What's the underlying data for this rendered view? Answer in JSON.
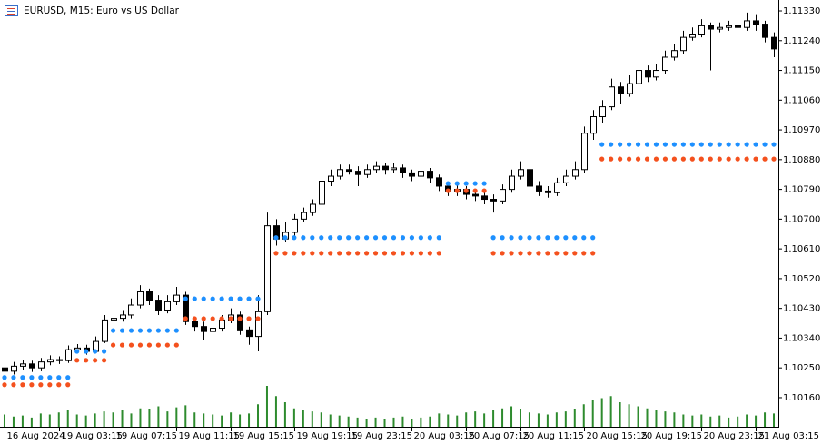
{
  "chart_data": {
    "type": "candlestick",
    "title": "EURUSD, M15:  Euro vs US Dollar",
    "categories": [
      "16 Aug 2024",
      null,
      null,
      null,
      null,
      null,
      "19 Aug 03:15",
      null,
      null,
      null,
      null,
      null,
      "19 Aug 07:15",
      null,
      null,
      null,
      null,
      null,
      null,
      "19 Aug 11:15",
      null,
      null,
      null,
      null,
      null,
      "19 Aug 15:15",
      null,
      null,
      null,
      null,
      null,
      null,
      "19 Aug 19:15",
      null,
      null,
      null,
      null,
      null,
      "19 Aug 23:15",
      null,
      null,
      null,
      null,
      null,
      null,
      "20 Aug 03:15",
      null,
      null,
      null,
      null,
      null,
      "20 Aug 07:15",
      null,
      null,
      null,
      null,
      null,
      "20 Aug 11:15",
      null,
      null,
      null,
      null,
      null,
      null,
      "20 Aug 15:15",
      null,
      null,
      null,
      null,
      null,
      "20 Aug 19:15",
      null,
      null,
      null,
      null,
      null,
      null,
      "20 Aug 23:15",
      null,
      null,
      null,
      null,
      null,
      "21 Aug 03:15",
      null,
      null
    ],
    "open": [
      1.1025,
      1.1024,
      1.10255,
      1.10262,
      1.1025,
      1.10268,
      1.10275,
      1.10272,
      1.10305,
      1.1031,
      1.103,
      1.1033,
      1.10395,
      1.104,
      1.1041,
      1.1044,
      1.1048,
      1.10455,
      1.10425,
      1.1045,
      1.1047,
      1.1039,
      1.10375,
      1.1036,
      1.1037,
      1.10395,
      1.1041,
      1.10365,
      1.10345,
      1.1042,
      1.1068,
      1.1064,
      1.1066,
      1.107,
      1.1072,
      1.10745,
      1.10815,
      1.1083,
      1.1085,
      1.10845,
      1.10835,
      1.1085,
      1.1086,
      1.1085,
      1.10855,
      1.1084,
      1.1083,
      1.10845,
      1.10825,
      1.108,
      1.10785,
      1.1079,
      1.10775,
      1.1077,
      1.1076,
      1.10755,
      1.1079,
      1.1083,
      1.1085,
      1.108,
      1.10785,
      1.1078,
      1.1081,
      1.1083,
      1.1085,
      1.1096,
      1.1101,
      1.1104,
      1.111,
      1.1108,
      1.1111,
      1.1115,
      1.1113,
      1.1115,
      1.1119,
      1.1121,
      1.1125,
      1.1126,
      1.11285,
      1.11275,
      1.1128,
      1.11285,
      1.1128,
      1.113,
      1.1129,
      1.1125
    ],
    "high": [
      1.10262,
      1.10268,
      1.10275,
      1.10272,
      1.1028,
      1.10288,
      1.10285,
      1.10318,
      1.10322,
      1.1032,
      1.10345,
      1.1041,
      1.10415,
      1.10425,
      1.1046,
      1.105,
      1.1049,
      1.1047,
      1.1047,
      1.10495,
      1.1048,
      1.104,
      1.1039,
      1.10385,
      1.1041,
      1.1043,
      1.1042,
      1.10375,
      1.1047,
      1.1072,
      1.107,
      1.1069,
      1.10715,
      1.10735,
      1.1076,
      1.10835,
      1.1085,
      1.10865,
      1.10865,
      1.1086,
      1.10865,
      1.10875,
      1.1087,
      1.1087,
      1.10865,
      1.1085,
      1.10865,
      1.10855,
      1.10835,
      1.1081,
      1.10805,
      1.108,
      1.1079,
      1.1078,
      1.10775,
      1.10805,
      1.1085,
      1.10875,
      1.1086,
      1.10815,
      1.108,
      1.10825,
      1.1085,
      1.10875,
      1.1098,
      1.1103,
      1.1106,
      1.11125,
      1.11115,
      1.11135,
      1.1117,
      1.11165,
      1.1117,
      1.1121,
      1.1123,
      1.1127,
      1.1128,
      1.11305,
      1.11295,
      1.11295,
      1.113,
      1.113,
      1.11325,
      1.1132,
      1.113,
      1.11265
    ],
    "low": [
      1.10228,
      1.1023,
      1.10245,
      1.10238,
      1.1024,
      1.10258,
      1.10262,
      1.10265,
      1.10295,
      1.1029,
      1.10295,
      1.10325,
      1.10385,
      1.1039,
      1.104,
      1.1043,
      1.1044,
      1.1041,
      1.10415,
      1.1044,
      1.1038,
      1.1036,
      1.10335,
      1.10345,
      1.1036,
      1.10385,
      1.1035,
      1.1032,
      1.103,
      1.1041,
      1.1062,
      1.1063,
      1.1065,
      1.1069,
      1.1071,
      1.10735,
      1.108,
      1.1082,
      1.10835,
      1.108,
      1.10825,
      1.1084,
      1.10835,
      1.1084,
      1.10825,
      1.10815,
      1.1082,
      1.1081,
      1.10785,
      1.1077,
      1.1077,
      1.1076,
      1.10755,
      1.10745,
      1.1072,
      1.10745,
      1.1078,
      1.1082,
      1.10785,
      1.1077,
      1.10765,
      1.1077,
      1.108,
      1.1082,
      1.1084,
      1.1094,
      1.1099,
      1.1103,
      1.1105,
      1.1107,
      1.111,
      1.11115,
      1.1112,
      1.1114,
      1.1118,
      1.112,
      1.1124,
      1.1125,
      1.1115,
      1.11265,
      1.1127,
      1.11265,
      1.1127,
      1.1127,
      1.11235,
      1.1119
    ],
    "close": [
      1.1024,
      1.10255,
      1.10262,
      1.1025,
      1.10268,
      1.10275,
      1.10272,
      1.10305,
      1.1031,
      1.103,
      1.1033,
      1.10395,
      1.104,
      1.1041,
      1.1044,
      1.1048,
      1.10455,
      1.10425,
      1.1045,
      1.1047,
      1.1039,
      1.10375,
      1.1036,
      1.1037,
      1.10395,
      1.1041,
      1.10365,
      1.10345,
      1.1042,
      1.1068,
      1.1064,
      1.1066,
      1.107,
      1.1072,
      1.10745,
      1.10815,
      1.1083,
      1.1085,
      1.10845,
      1.10835,
      1.1085,
      1.1086,
      1.1085,
      1.10855,
      1.1084,
      1.1083,
      1.10845,
      1.10825,
      1.108,
      1.10785,
      1.1079,
      1.10775,
      1.1077,
      1.1076,
      1.10755,
      1.1079,
      1.1083,
      1.1085,
      1.108,
      1.10785,
      1.1078,
      1.1081,
      1.1083,
      1.1085,
      1.1096,
      1.1101,
      1.1104,
      1.111,
      1.1108,
      1.1111,
      1.1115,
      1.1113,
      1.1115,
      1.1119,
      1.1121,
      1.1125,
      1.1126,
      1.11285,
      1.11275,
      1.1128,
      1.11285,
      1.1128,
      1.113,
      1.1129,
      1.1125,
      1.11215
    ],
    "volume": [
      12,
      10,
      11,
      9,
      13,
      12,
      14,
      16,
      12,
      11,
      13,
      15,
      14,
      16,
      13,
      18,
      17,
      20,
      15,
      19,
      21,
      14,
      13,
      12,
      11,
      14,
      12,
      13,
      22,
      40,
      30,
      24,
      18,
      16,
      15,
      14,
      12,
      11,
      10,
      9,
      8,
      9,
      8,
      9,
      10,
      8,
      9,
      10,
      13,
      12,
      11,
      14,
      15,
      13,
      16,
      18,
      20,
      17,
      14,
      13,
      12,
      14,
      15,
      17,
      22,
      26,
      28,
      30,
      24,
      22,
      20,
      18,
      16,
      15,
      14,
      12,
      11,
      12,
      10,
      11,
      9,
      10,
      12,
      11,
      14,
      13
    ],
    "volume_color": "#2e8b2e",
    "up_color": "#ffffff",
    "down_color": "#000000",
    "series": [
      {
        "color": "#1e90ff",
        "values": [
          1.10221,
          1.10221,
          1.10221,
          1.10221,
          1.10221,
          1.10221,
          1.10221,
          1.10221,
          1.103,
          1.103,
          1.103,
          1.103,
          1.10363,
          1.10363,
          1.10363,
          1.10363,
          1.10363,
          1.10363,
          1.10363,
          1.10363,
          1.10459,
          1.10459,
          1.10459,
          1.10459,
          1.10459,
          1.10459,
          1.10459,
          1.10459,
          1.10459,
          null,
          1.10644,
          1.10644,
          1.10644,
          1.10644,
          1.10644,
          1.10644,
          1.10644,
          1.10644,
          1.10644,
          1.10644,
          1.10644,
          1.10644,
          1.10644,
          1.10644,
          1.10644,
          1.10644,
          1.10644,
          1.10644,
          1.10644,
          1.10808,
          1.10808,
          1.10808,
          1.10808,
          1.10808,
          1.10644,
          1.10644,
          1.10644,
          1.10644,
          1.10644,
          1.10644,
          1.10644,
          1.10644,
          1.10644,
          1.10644,
          1.10644,
          1.10644,
          1.10926,
          1.10926,
          1.10926,
          1.10926,
          1.10926,
          1.10926,
          1.10926,
          1.10926,
          1.10926,
          1.10926,
          1.10926,
          1.10926,
          1.10926,
          1.10926,
          1.10926,
          1.10926,
          1.10926,
          1.10926,
          1.10926,
          1.10926
        ]
      },
      {
        "color": "#f4511e",
        "values": [
          1.10199,
          1.10199,
          1.10199,
          1.10199,
          1.10199,
          1.10199,
          1.10199,
          1.10199,
          1.10273,
          1.10273,
          1.10273,
          1.10273,
          1.10319,
          1.10319,
          1.10319,
          1.10319,
          1.10319,
          1.10319,
          1.10319,
          1.10319,
          1.10399,
          1.10399,
          1.10399,
          1.10399,
          1.10399,
          1.10399,
          1.10399,
          1.10399,
          1.10399,
          null,
          1.10597,
          1.10597,
          1.10597,
          1.10597,
          1.10597,
          1.10597,
          1.10597,
          1.10597,
          1.10597,
          1.10597,
          1.10597,
          1.10597,
          1.10597,
          1.10597,
          1.10597,
          1.10597,
          1.10597,
          1.10597,
          1.10597,
          1.10786,
          1.10786,
          1.10786,
          1.10786,
          1.10786,
          1.10597,
          1.10597,
          1.10597,
          1.10597,
          1.10597,
          1.10597,
          1.10597,
          1.10597,
          1.10597,
          1.10597,
          1.10597,
          1.10597,
          1.10882,
          1.10882,
          1.10882,
          1.10882,
          1.10882,
          1.10882,
          1.10882,
          1.10882,
          1.10882,
          1.10882,
          1.10882,
          1.10882,
          1.10882,
          1.10882,
          1.10882,
          1.10882,
          1.10882,
          1.10882,
          1.10882,
          1.10882
        ]
      }
    ],
    "ylim": [
      1.10072,
      1.11363
    ],
    "yticks": [
      {
        "value": 1.1133,
        "label": "1.11330"
      },
      {
        "value": 1.1124,
        "label": "1.11240"
      },
      {
        "value": 1.1115,
        "label": "1.11150"
      },
      {
        "value": 1.1106,
        "label": "1.11060"
      },
      {
        "value": 1.1097,
        "label": "1.10970"
      },
      {
        "value": 1.1088,
        "label": "1.10880"
      },
      {
        "value": 1.1079,
        "label": "1.10790"
      },
      {
        "value": 1.107,
        "label": "1.10700"
      },
      {
        "value": 1.1061,
        "label": "1.10610"
      },
      {
        "value": 1.1052,
        "label": "1.10520"
      },
      {
        "value": 1.1043,
        "label": "1.10430"
      },
      {
        "value": 1.1034,
        "label": "1.10340"
      },
      {
        "value": 1.1025,
        "label": "1.10250"
      },
      {
        "value": 1.1016,
        "label": "1.10160"
      }
    ]
  }
}
